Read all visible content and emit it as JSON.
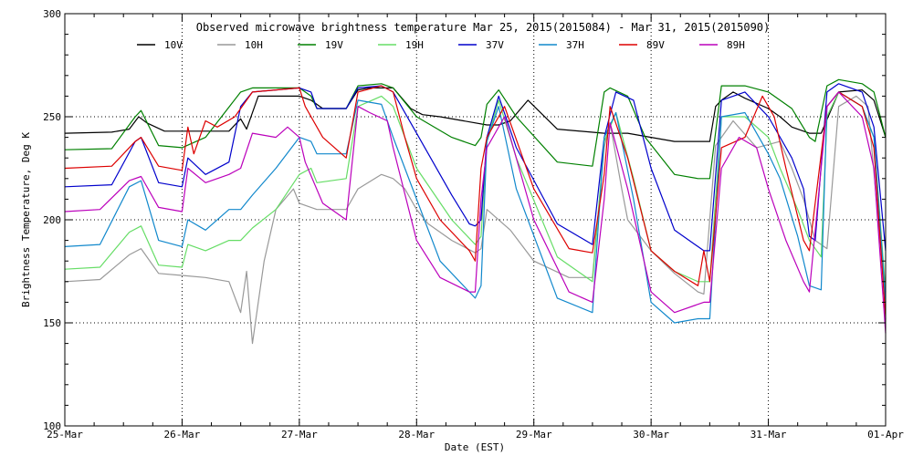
{
  "chart_data": {
    "type": "line",
    "title": "Observed microwave brightness temperature Mar 25, 2015(2015084) - Mar 31, 2015(2015090)",
    "xlabel": "Date (EST)",
    "ylabel": "Brightness Temperature, Deg K",
    "xlim": [
      0,
      7
    ],
    "ylim": [
      100,
      300
    ],
    "x_unit": "days since Mar 25 00:00 EST",
    "x_ticks": [
      0,
      1,
      2,
      3,
      4,
      5,
      6,
      7
    ],
    "x_tick_labels": [
      "25-Mar",
      "26-Mar",
      "27-Mar",
      "28-Mar",
      "29-Mar",
      "30-Mar",
      "31-Mar",
      "01-Apr"
    ],
    "y_ticks": [
      100,
      150,
      200,
      250,
      300
    ],
    "y_tick_labels": [
      "100",
      "150",
      "200",
      "250",
      "300"
    ],
    "grid": true,
    "legend_position": "top",
    "series": [
      {
        "name": "10V",
        "color": "#000000",
        "x": [
          0,
          0.4,
          0.55,
          0.63,
          0.7,
          0.85,
          1.0,
          1.2,
          1.4,
          1.5,
          1.55,
          1.65,
          1.8,
          2.0,
          2.1,
          2.2,
          2.4,
          2.5,
          2.6,
          2.8,
          2.95,
          3.05,
          3.2,
          3.4,
          3.6,
          3.7,
          3.8,
          3.95,
          4.2,
          4.6,
          4.8,
          5.0,
          5.2,
          5.4,
          5.5,
          5.55,
          5.6,
          5.7,
          5.8,
          6.0,
          6.1,
          6.2,
          6.35,
          6.45,
          6.6,
          6.8,
          6.9,
          7.0
        ],
        "y": [
          242,
          242.5,
          244,
          250,
          247,
          243,
          243,
          243,
          243,
          249,
          244,
          260,
          260,
          260,
          258,
          254,
          254,
          263,
          264,
          264,
          254,
          251,
          250,
          248,
          246,
          246,
          248,
          258,
          244,
          242,
          242,
          240,
          238,
          238,
          238,
          255,
          258,
          262,
          259,
          254,
          250,
          245,
          242,
          242,
          262,
          263,
          258,
          240
        ]
      },
      {
        "name": "10H",
        "color": "#999999",
        "x": [
          0,
          0.3,
          0.55,
          0.65,
          0.8,
          1.0,
          1.2,
          1.4,
          1.5,
          1.55,
          1.6,
          1.7,
          1.8,
          1.95,
          2.0,
          2.15,
          2.4,
          2.5,
          2.7,
          2.8,
          2.9,
          3.0,
          3.1,
          3.3,
          3.5,
          3.55,
          3.6,
          3.8,
          4.0,
          4.3,
          4.5,
          4.6,
          4.65,
          4.75,
          4.8,
          5.0,
          5.2,
          5.4,
          5.45,
          5.55,
          5.7,
          5.9,
          6.1,
          6.2,
          6.3,
          6.4,
          6.5,
          6.6,
          6.75,
          6.85,
          7.0
        ],
        "y": [
          170,
          171,
          183,
          186,
          174,
          173,
          172,
          170,
          155,
          175,
          140,
          180,
          205,
          215,
          208,
          205,
          205,
          215,
          222,
          220,
          215,
          205,
          198,
          190,
          184,
          186,
          205,
          195,
          180,
          172,
          172,
          235,
          247,
          215,
          200,
          185,
          174,
          165,
          164,
          236,
          248,
          235,
          238,
          225,
          210,
          190,
          186,
          255,
          260,
          255,
          160
        ]
      },
      {
        "name": "19V",
        "color": "#008000",
        "x": [
          0,
          0.4,
          0.6,
          0.65,
          0.8,
          1.0,
          1.2,
          1.5,
          1.6,
          2.0,
          2.1,
          2.15,
          2.4,
          2.5,
          2.7,
          2.8,
          3.0,
          3.3,
          3.5,
          3.55,
          3.6,
          3.7,
          3.85,
          4.2,
          4.5,
          4.6,
          4.65,
          4.8,
          4.95,
          5.2,
          5.4,
          5.5,
          5.6,
          5.8,
          6.0,
          6.2,
          6.35,
          6.4,
          6.5,
          6.6,
          6.8,
          6.9,
          7.0
        ],
        "y": [
          234,
          234.5,
          250,
          253,
          236,
          235,
          240,
          262,
          264,
          264,
          260,
          254,
          254,
          265,
          266,
          264,
          250,
          240,
          236,
          240,
          256,
          263,
          250,
          228,
          226,
          262,
          264,
          260,
          240,
          222,
          220,
          220,
          265,
          265,
          262,
          254,
          240,
          238,
          265,
          268,
          266,
          262,
          240
        ]
      },
      {
        "name": "19H",
        "color": "#66dd66",
        "x": [
          0,
          0.3,
          0.55,
          0.65,
          0.8,
          1.0,
          1.05,
          1.2,
          1.4,
          1.5,
          1.6,
          1.8,
          2.0,
          2.1,
          2.15,
          2.4,
          2.5,
          2.7,
          2.8,
          3.0,
          3.3,
          3.5,
          3.55,
          3.6,
          3.7,
          3.85,
          4.2,
          4.5,
          4.6,
          4.7,
          4.85,
          5.0,
          5.2,
          5.4,
          5.5,
          5.6,
          5.8,
          6.0,
          6.1,
          6.25,
          6.35,
          6.45,
          6.5,
          6.6,
          6.8,
          6.9,
          7.0
        ],
        "y": [
          176,
          177,
          194,
          197,
          178,
          177,
          188,
          185,
          190,
          190,
          196,
          205,
          222,
          225,
          218,
          220,
          255,
          260,
          255,
          225,
          200,
          188,
          192,
          238,
          258,
          230,
          182,
          170,
          238,
          252,
          220,
          185,
          175,
          170,
          170,
          250,
          250,
          240,
          225,
          205,
          190,
          182,
          250,
          262,
          255,
          240,
          165
        ]
      },
      {
        "name": "37V",
        "color": "#0000cc",
        "x": [
          0,
          0.4,
          0.6,
          0.65,
          0.8,
          1.0,
          1.05,
          1.2,
          1.4,
          1.5,
          1.6,
          2.0,
          2.1,
          2.15,
          2.4,
          2.5,
          2.7,
          2.8,
          3.0,
          3.3,
          3.45,
          3.5,
          3.55,
          3.6,
          3.7,
          3.85,
          4.2,
          4.5,
          4.6,
          4.7,
          4.85,
          5.0,
          5.2,
          5.45,
          5.5,
          5.6,
          5.8,
          6.0,
          6.2,
          6.3,
          6.35,
          6.4,
          6.5,
          6.6,
          6.8,
          6.9,
          7.0
        ],
        "y": [
          216,
          217,
          238,
          240,
          218,
          216,
          230,
          222,
          228,
          255,
          262,
          264,
          262,
          254,
          254,
          264,
          265,
          262,
          242,
          212,
          198,
          197,
          200,
          240,
          260,
          235,
          198,
          188,
          240,
          262,
          258,
          225,
          195,
          185,
          185,
          258,
          262,
          250,
          230,
          215,
          192,
          190,
          262,
          266,
          262,
          245,
          185
        ]
      },
      {
        "name": "37H",
        "color": "#1188cc",
        "x": [
          0,
          0.3,
          0.55,
          0.65,
          0.8,
          1.0,
          1.05,
          1.2,
          1.4,
          1.5,
          1.6,
          1.8,
          2.0,
          2.1,
          2.15,
          2.4,
          2.5,
          2.7,
          2.8,
          3.0,
          3.2,
          3.5,
          3.55,
          3.6,
          3.7,
          3.85,
          4.2,
          4.5,
          4.6,
          4.7,
          4.85,
          5.0,
          5.2,
          5.4,
          5.5,
          5.6,
          5.8,
          6.0,
          6.1,
          6.25,
          6.35,
          6.45,
          6.5,
          6.6,
          6.8,
          6.9,
          7.0
        ],
        "y": [
          187,
          188,
          216,
          219,
          190,
          187,
          200,
          195,
          205,
          205,
          212,
          225,
          240,
          238,
          232,
          232,
          258,
          256,
          240,
          210,
          180,
          162,
          168,
          238,
          255,
          215,
          162,
          155,
          240,
          252,
          210,
          160,
          150,
          152,
          152,
          250,
          252,
          232,
          220,
          192,
          168,
          166,
          255,
          262,
          255,
          240,
          160
        ]
      },
      {
        "name": "89V",
        "color": "#dd0000",
        "x": [
          0,
          0.4,
          0.6,
          0.65,
          0.8,
          1.0,
          1.05,
          1.1,
          1.2,
          1.3,
          1.45,
          1.6,
          1.8,
          2.0,
          2.05,
          2.2,
          2.4,
          2.5,
          2.7,
          2.8,
          2.9,
          3.0,
          3.2,
          3.45,
          3.5,
          3.55,
          3.6,
          3.75,
          4.0,
          4.3,
          4.5,
          4.6,
          4.65,
          4.8,
          5.0,
          5.2,
          5.4,
          5.45,
          5.5,
          5.6,
          5.8,
          5.95,
          6.05,
          6.15,
          6.3,
          6.35,
          6.5,
          6.6,
          6.8,
          6.9,
          7.0
        ],
        "y": [
          225,
          226,
          238,
          240,
          226,
          224,
          245,
          232,
          248,
          245,
          250,
          262,
          263,
          264,
          255,
          240,
          230,
          262,
          265,
          262,
          240,
          220,
          200,
          185,
          180,
          225,
          240,
          255,
          215,
          186,
          184,
          222,
          255,
          230,
          185,
          175,
          168,
          185,
          170,
          235,
          240,
          260,
          250,
          225,
          190,
          185,
          255,
          262,
          255,
          235,
          152
        ]
      },
      {
        "name": "89H",
        "color": "#bb00bb",
        "x": [
          0,
          0.3,
          0.55,
          0.65,
          0.8,
          1.0,
          1.05,
          1.2,
          1.4,
          1.5,
          1.6,
          1.8,
          1.9,
          2.0,
          2.05,
          2.2,
          2.4,
          2.5,
          2.6,
          2.75,
          2.8,
          3.0,
          3.2,
          3.45,
          3.5,
          3.55,
          3.6,
          3.75,
          4.0,
          4.3,
          4.5,
          4.6,
          4.65,
          4.8,
          5.0,
          5.2,
          5.45,
          5.5,
          5.6,
          5.75,
          5.9,
          6.0,
          6.15,
          6.3,
          6.35,
          6.5,
          6.6,
          6.8,
          6.9,
          7.0
        ],
        "y": [
          204,
          205,
          219,
          221,
          206,
          204,
          225,
          218,
          222,
          225,
          242,
          240,
          245,
          240,
          228,
          208,
          200,
          255,
          252,
          248,
          235,
          190,
          172,
          165,
          165,
          210,
          235,
          250,
          200,
          165,
          160,
          210,
          247,
          215,
          165,
          155,
          160,
          160,
          225,
          240,
          235,
          215,
          190,
          170,
          165,
          255,
          262,
          250,
          225,
          145
        ]
      }
    ]
  }
}
